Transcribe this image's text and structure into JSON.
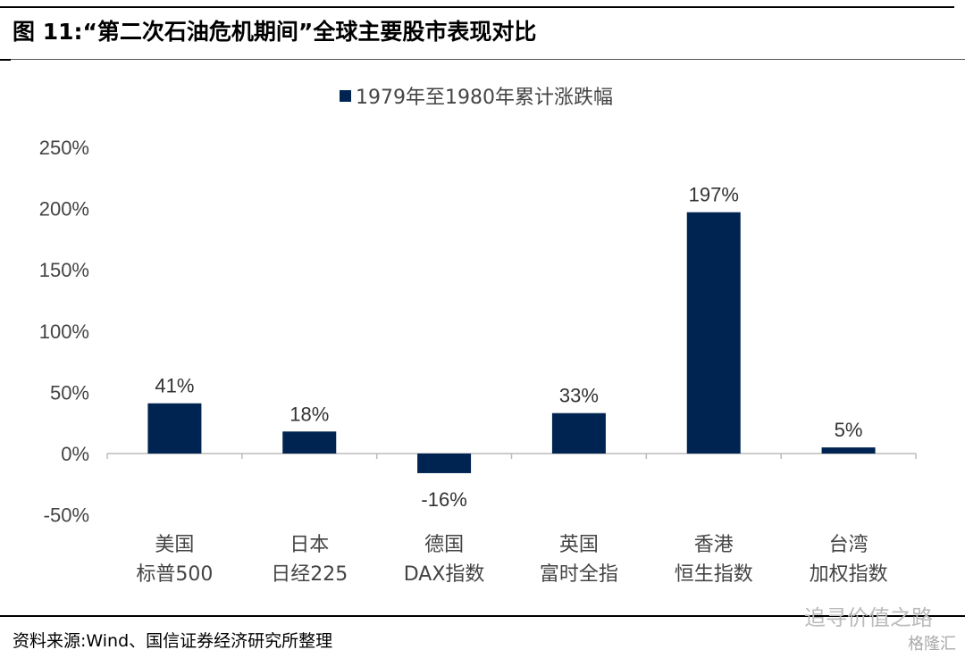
{
  "header": {
    "title": "图  11:“第二次石油危机期间”全球主要股市表现对比"
  },
  "footer": {
    "source": "资料来源:Wind、国信证券经济研究所整理",
    "watermark": "追寻价值之路",
    "watermark2": "格隆汇"
  },
  "colors": {
    "bar": "#002452"
  },
  "chart_data": {
    "type": "bar",
    "title": "",
    "legend": [
      "1979年至1980年累计涨跌幅"
    ],
    "legend_position": "top",
    "categories": [
      [
        "美国",
        "标普500"
      ],
      [
        "日本",
        "日经225"
      ],
      [
        "德国",
        "DAX指数"
      ],
      [
        "英国",
        "富时全指"
      ],
      [
        "香港",
        "恒生指数"
      ],
      [
        "台湾",
        "加权指数"
      ]
    ],
    "values": [
      41,
      18,
      -16,
      33,
      197,
      5
    ],
    "data_labels": [
      "41%",
      "18%",
      "-16%",
      "33%",
      "197%",
      "5%"
    ],
    "ylim": [
      -50,
      250
    ],
    "yticks": [
      -50,
      0,
      50,
      100,
      150,
      200,
      250
    ],
    "ytick_labels": [
      "-50%",
      "0%",
      "50%",
      "100%",
      "150%",
      "200%",
      "250%"
    ],
    "grid": false
  }
}
